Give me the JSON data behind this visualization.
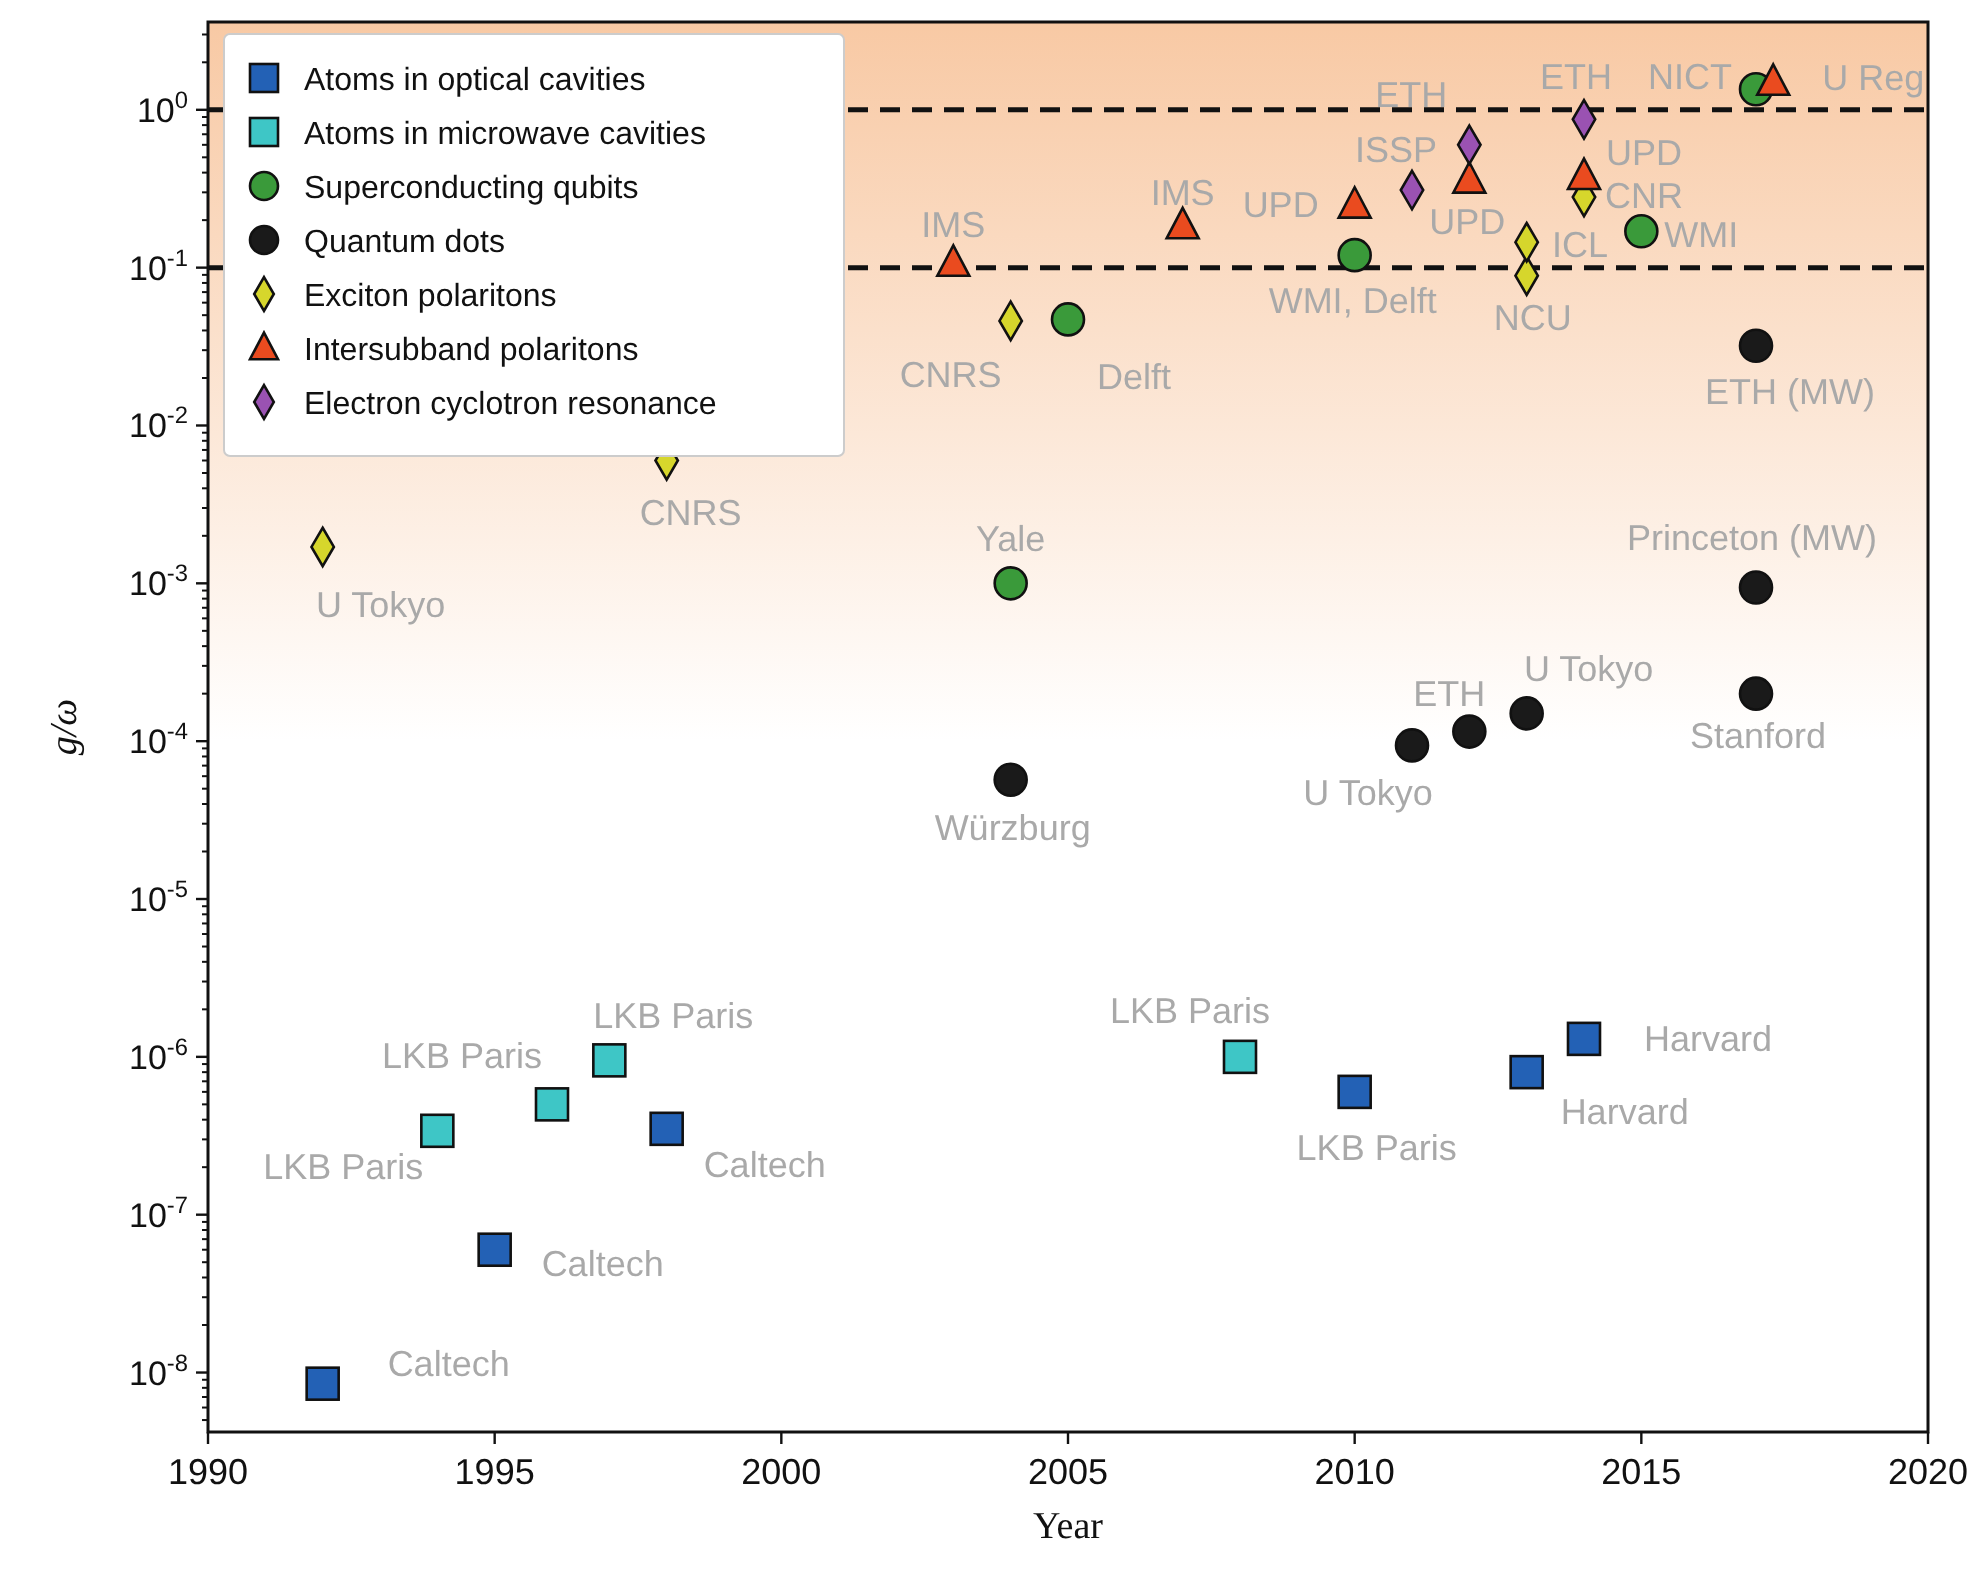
{
  "chart_data": {
    "type": "scatter",
    "xlabel": "Year",
    "ylabel": "g/ω",
    "log": "y",
    "legend": "top left",
    "grid": false,
    "xlim": [
      1990,
      2020
    ],
    "xticks": [
      1990,
      1995,
      2000,
      2005,
      2010,
      2015,
      2020
    ],
    "ylim": [
      4.2e-09,
      3.6
    ],
    "yticks": [
      {
        "value": 1e-08,
        "label": "10$^{-8}$"
      },
      {
        "value": 1e-07,
        "label": "10$^{-7}$"
      },
      {
        "value": 1e-06,
        "label": "10$^{-6}$"
      },
      {
        "value": 1e-05,
        "label": "10$^{-5}$"
      },
      {
        "value": 0.0001,
        "label": "10$^{-4}$"
      },
      {
        "value": 0.001,
        "label": "10$^{-3}$"
      },
      {
        "value": 0.01,
        "label": "10$^{-2}$"
      },
      {
        "value": 0.1,
        "label": "10$^{-1}$"
      },
      {
        "value": 1,
        "label": "10$^{0}$"
      }
    ],
    "bands": [
      {
        "axis": "y",
        "from": 0.0001,
        "to": 3.6,
        "color": "#f8c9a4"
      }
    ],
    "ref_lines": [
      {
        "axis": "y",
        "value": 1,
        "line_style": "dashed",
        "color": "#111111"
      },
      {
        "axis": "y",
        "value": 0.1,
        "line_style": "dashed",
        "color": "#111111"
      }
    ],
    "series": [
      {
        "name": "Atoms in optical cavities",
        "color": "#2361b5",
        "marker": "square",
        "x": [
          1992,
          1995,
          1998,
          2010,
          2013,
          2014
        ],
        "values": [
          8.5e-09,
          6e-08,
          3.5e-07,
          6e-07,
          8e-07,
          1.3e-06
        ]
      },
      {
        "name": "Atoms in microwave cavities",
        "color": "#3ec6c6",
        "marker": "square",
        "x": [
          1994,
          1996,
          1997,
          2008
        ],
        "values": [
          3.4e-07,
          5e-07,
          9.5e-07,
          1e-06
        ]
      },
      {
        "name": "Superconducting qubits",
        "color": "#3a9a3a",
        "marker": "circle",
        "x": [
          2004,
          2005,
          2010,
          2015,
          2017
        ],
        "values": [
          0.001,
          0.047,
          0.12,
          0.17,
          1.35
        ]
      },
      {
        "name": "Quantum dots",
        "color": "#1a1a1a",
        "marker": "circle",
        "x": [
          2004,
          2011,
          2012,
          2013,
          2017,
          2017,
          2017
        ],
        "values": [
          5.7e-05,
          9.4e-05,
          0.000115,
          0.00015,
          0.0002,
          0.00094,
          0.032
        ]
      },
      {
        "name": "Exciton polaritons",
        "color": "#d6d62c",
        "marker": "diamond",
        "x": [
          1992,
          1998,
          2004,
          2013,
          2013,
          2014
        ],
        "values": [
          0.0017,
          0.006,
          0.046,
          0.089,
          0.145,
          0.28
        ]
      },
      {
        "name": "Intersubband polaritons",
        "color": "#ea4b1f",
        "marker": "triangle",
        "x": [
          2003,
          2007,
          2010,
          2012,
          2014,
          2017.3
        ],
        "values": [
          0.107,
          0.185,
          0.25,
          0.36,
          0.38,
          1.5
        ]
      },
      {
        "name": "Electron cyclotron resonance",
        "color": "#9a52b2",
        "marker": "diamond",
        "x": [
          2011,
          2012,
          2014
        ],
        "values": [
          0.31,
          0.6,
          0.87
        ]
      }
    ],
    "annotations": [
      {
        "text": "U Tokyo",
        "x": 1992,
        "y": 0.0017
      },
      {
        "text": "CNRS",
        "x": 1998,
        "y": 0.006
      },
      {
        "text": "CNRS",
        "x": 2004,
        "y": 0.046
      },
      {
        "text": "Yale",
        "x": 2004,
        "y": 0.001
      },
      {
        "text": "Delft",
        "x": 2005,
        "y": 0.047
      },
      {
        "text": "IMS",
        "x": 2003,
        "y": 0.107
      },
      {
        "text": "IMS",
        "x": 2007,
        "y": 0.185
      },
      {
        "text": "WMI, Delft",
        "x": 2010,
        "y": 0.12
      },
      {
        "text": "UPD",
        "x": 2010,
        "y": 0.25
      },
      {
        "text": "ISSP",
        "x": 2011,
        "y": 0.31
      },
      {
        "text": "ETH",
        "x": 2012,
        "y": 0.6
      },
      {
        "text": "UPD",
        "x": 2012,
        "y": 0.36
      },
      {
        "text": "ETH",
        "x": 2014,
        "y": 0.87
      },
      {
        "text": "UPD",
        "x": 2014,
        "y": 0.87
      },
      {
        "text": "NICT",
        "x": 2017,
        "y": 1.35
      },
      {
        "text": "U Reg",
        "x": 2017.3,
        "y": 1.5
      },
      {
        "text": "CNR",
        "x": 2014,
        "y": 0.38
      },
      {
        "text": "ICL",
        "x": 2014,
        "y": 0.28
      },
      {
        "text": "WMI",
        "x": 2015,
        "y": 0.17
      },
      {
        "text": "NCU",
        "x": 2013,
        "y": 0.089
      },
      {
        "text": "ETH (MW)",
        "x": 2017,
        "y": 0.032
      },
      {
        "text": "Princeton (MW)",
        "x": 2017,
        "y": 0.00094
      },
      {
        "text": "Stanford",
        "x": 2017,
        "y": 0.0002
      },
      {
        "text": "U Tokyo",
        "x": 2013,
        "y": 0.00015
      },
      {
        "text": "ETH",
        "x": 2012,
        "y": 0.000115
      },
      {
        "text": "U Tokyo",
        "x": 2011,
        "y": 9.4e-05
      },
      {
        "text": "Würzburg",
        "x": 2004,
        "y": 5.7e-05
      },
      {
        "text": "LKB Paris",
        "x": 2008,
        "y": 1e-06
      },
      {
        "text": "LKB Paris",
        "x": 2010,
        "y": 6e-07
      },
      {
        "text": "Harvard",
        "x": 2013,
        "y": 8e-07
      },
      {
        "text": "Harvard",
        "x": 2014,
        "y": 1.3e-06
      },
      {
        "text": "LKB Paris",
        "x": 1996,
        "y": 5e-07
      },
      {
        "text": "LKB Paris",
        "x": 1997,
        "y": 9.5e-07
      },
      {
        "text": "LKB Paris",
        "x": 1994,
        "y": 3.4e-07
      },
      {
        "text": "Caltech",
        "x": 1998,
        "y": 3.5e-07
      },
      {
        "text": "Caltech",
        "x": 1995,
        "y": 6e-08
      },
      {
        "text": "Caltech",
        "x": 1992,
        "y": 8.5e-09
      }
    ]
  }
}
